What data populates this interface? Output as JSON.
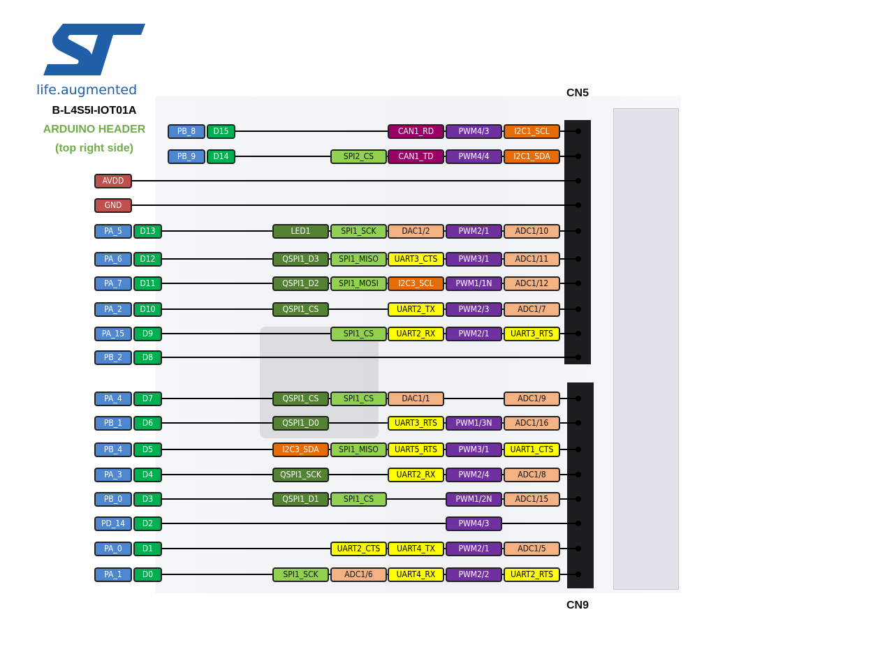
{
  "title": {
    "board": "B-L4S5I-IOT01A",
    "header": "ARDUINO HEADER",
    "side": "(top right side)",
    "logo_text": "life.augmented",
    "connector_top": "CN5",
    "connector_bottom": "CN9"
  },
  "colors": {
    "port": "#4f86d0",
    "arduino": "#00b050",
    "power": "#c0504d",
    "led_qspi": "#548235",
    "spi": "#92d050",
    "can": "#990066",
    "pwm": "#7030a0",
    "i2c": "#e46c0a",
    "analog": "#f4b183",
    "uart": "#ffff00",
    "logo": "#1f5fa8"
  },
  "rows": [
    {
      "port": "PB_8",
      "arduino": "D15",
      "cells": [
        null,
        null,
        {
          "l": "CAN1_RD",
          "t": "can"
        },
        {
          "l": "PWM4/3",
          "t": "pwm"
        },
        {
          "l": "I2C1_SCL",
          "t": "i2c"
        }
      ]
    },
    {
      "port": "PB_9",
      "arduino": "D14",
      "cells": [
        null,
        {
          "l": "SPI2_CS",
          "t": "spi"
        },
        {
          "l": "CAN1_TD",
          "t": "can"
        },
        {
          "l": "PWM4/4",
          "t": "pwm"
        },
        {
          "l": "I2C1_SDA",
          "t": "i2c"
        }
      ]
    },
    {
      "port": "AVDD",
      "arduino": null,
      "cells": []
    },
    {
      "port": "GND",
      "arduino": null,
      "cells": []
    },
    {
      "port": "PA_5",
      "arduino": "D13",
      "cells": [
        {
          "l": "LED1",
          "t": "led_qspi"
        },
        {
          "l": "SPI1_SCK",
          "t": "spi"
        },
        {
          "l": "DAC1/2",
          "t": "analog"
        },
        {
          "l": "PWM2/1",
          "t": "pwm"
        },
        {
          "l": "ADC1/10",
          "t": "analog"
        }
      ]
    },
    {
      "port": "PA_6",
      "arduino": "D12",
      "cells": [
        {
          "l": "QSPI1_D3",
          "t": "led_qspi"
        },
        {
          "l": "SPI1_MISO",
          "t": "spi"
        },
        {
          "l": "UART3_CTS",
          "t": "uart"
        },
        {
          "l": "PWM3/1",
          "t": "pwm"
        },
        {
          "l": "ADC1/11",
          "t": "analog"
        }
      ]
    },
    {
      "port": "PA_7",
      "arduino": "D11",
      "cells": [
        {
          "l": "QSPI1_D2",
          "t": "led_qspi"
        },
        {
          "l": "SPI1_MOSI",
          "t": "spi"
        },
        {
          "l": "I2C3_SCL",
          "t": "i2c"
        },
        {
          "l": "PWM1/1N",
          "t": "pwm"
        },
        {
          "l": "ADC1/12",
          "t": "analog"
        }
      ]
    },
    {
      "port": "PA_2",
      "arduino": "D10",
      "cells": [
        {
          "l": "QSPI1_CS",
          "t": "led_qspi"
        },
        null,
        {
          "l": "UART2_TX",
          "t": "uart"
        },
        {
          "l": "PWM2/3",
          "t": "pwm"
        },
        {
          "l": "ADC1/7",
          "t": "analog"
        }
      ]
    },
    {
      "port": "PA_15",
      "arduino": "D9",
      "cells": [
        null,
        {
          "l": "SPI1_CS",
          "t": "spi"
        },
        {
          "l": "UART2_RX",
          "t": "uart"
        },
        {
          "l": "PWM2/1",
          "t": "pwm"
        },
        {
          "l": "UART3_RTS",
          "t": "uart"
        }
      ]
    },
    {
      "port": "PB_2",
      "arduino": "D8",
      "cells": []
    },
    {
      "port": "PA_4",
      "arduino": "D7",
      "cells": [
        {
          "l": "QSPI1_CS",
          "t": "led_qspi"
        },
        {
          "l": "SPI1_CS",
          "t": "spi"
        },
        {
          "l": "DAC1/1",
          "t": "analog"
        },
        null,
        {
          "l": "ADC1/9",
          "t": "analog"
        }
      ]
    },
    {
      "port": "PB_1",
      "arduino": "D6",
      "cells": [
        {
          "l": "QSPI1_D0",
          "t": "led_qspi"
        },
        null,
        {
          "l": "UART3_RTS",
          "t": "uart"
        },
        {
          "l": "PWM1/3N",
          "t": "pwm"
        },
        {
          "l": "ADC1/16",
          "t": "analog"
        }
      ]
    },
    {
      "port": "PB_4",
      "arduino": "D5",
      "cells": [
        {
          "l": "I2C3_SDA",
          "t": "i2c"
        },
        {
          "l": "SPI1_MISO",
          "t": "spi"
        },
        {
          "l": "UART5_RTS",
          "t": "uart"
        },
        {
          "l": "PWM3/1",
          "t": "pwm"
        },
        {
          "l": "UART1_CTS",
          "t": "uart"
        }
      ]
    },
    {
      "port": "PA_3",
      "arduino": "D4",
      "cells": [
        {
          "l": "QSPI1_SCK",
          "t": "led_qspi"
        },
        null,
        {
          "l": "UART2_RX",
          "t": "uart"
        },
        {
          "l": "PWM2/4",
          "t": "pwm"
        },
        {
          "l": "ADC1/8",
          "t": "analog"
        }
      ]
    },
    {
      "port": "PB_0",
      "arduino": "D3",
      "cells": [
        {
          "l": "QSPI1_D1",
          "t": "led_qspi"
        },
        {
          "l": "SPI1_CS",
          "t": "spi"
        },
        null,
        {
          "l": "PWM1/2N",
          "t": "pwm"
        },
        {
          "l": "ADC1/15",
          "t": "analog"
        }
      ]
    },
    {
      "port": "PD_14",
      "arduino": "D2",
      "cells": [
        null,
        null,
        null,
        {
          "l": "PWM4/3",
          "t": "pwm"
        },
        null
      ]
    },
    {
      "port": "PA_0",
      "arduino": "D1",
      "cells": [
        null,
        {
          "l": "UART2_CTS",
          "t": "uart"
        },
        {
          "l": "UART4_TX",
          "t": "uart"
        },
        {
          "l": "PWM2/1",
          "t": "pwm"
        },
        {
          "l": "ADC1/5",
          "t": "analog"
        }
      ]
    },
    {
      "port": "PA_1",
      "arduino": "D0",
      "cells": [
        {
          "l": "SPI1_SCK",
          "t": "spi"
        },
        {
          "l": "ADC1/6",
          "t": "analog"
        },
        {
          "l": "UART4_RX",
          "t": "uart"
        },
        {
          "l": "PWM2/2",
          "t": "pwm"
        },
        {
          "l": "UART2_RTS",
          "t": "uart"
        }
      ]
    }
  ]
}
